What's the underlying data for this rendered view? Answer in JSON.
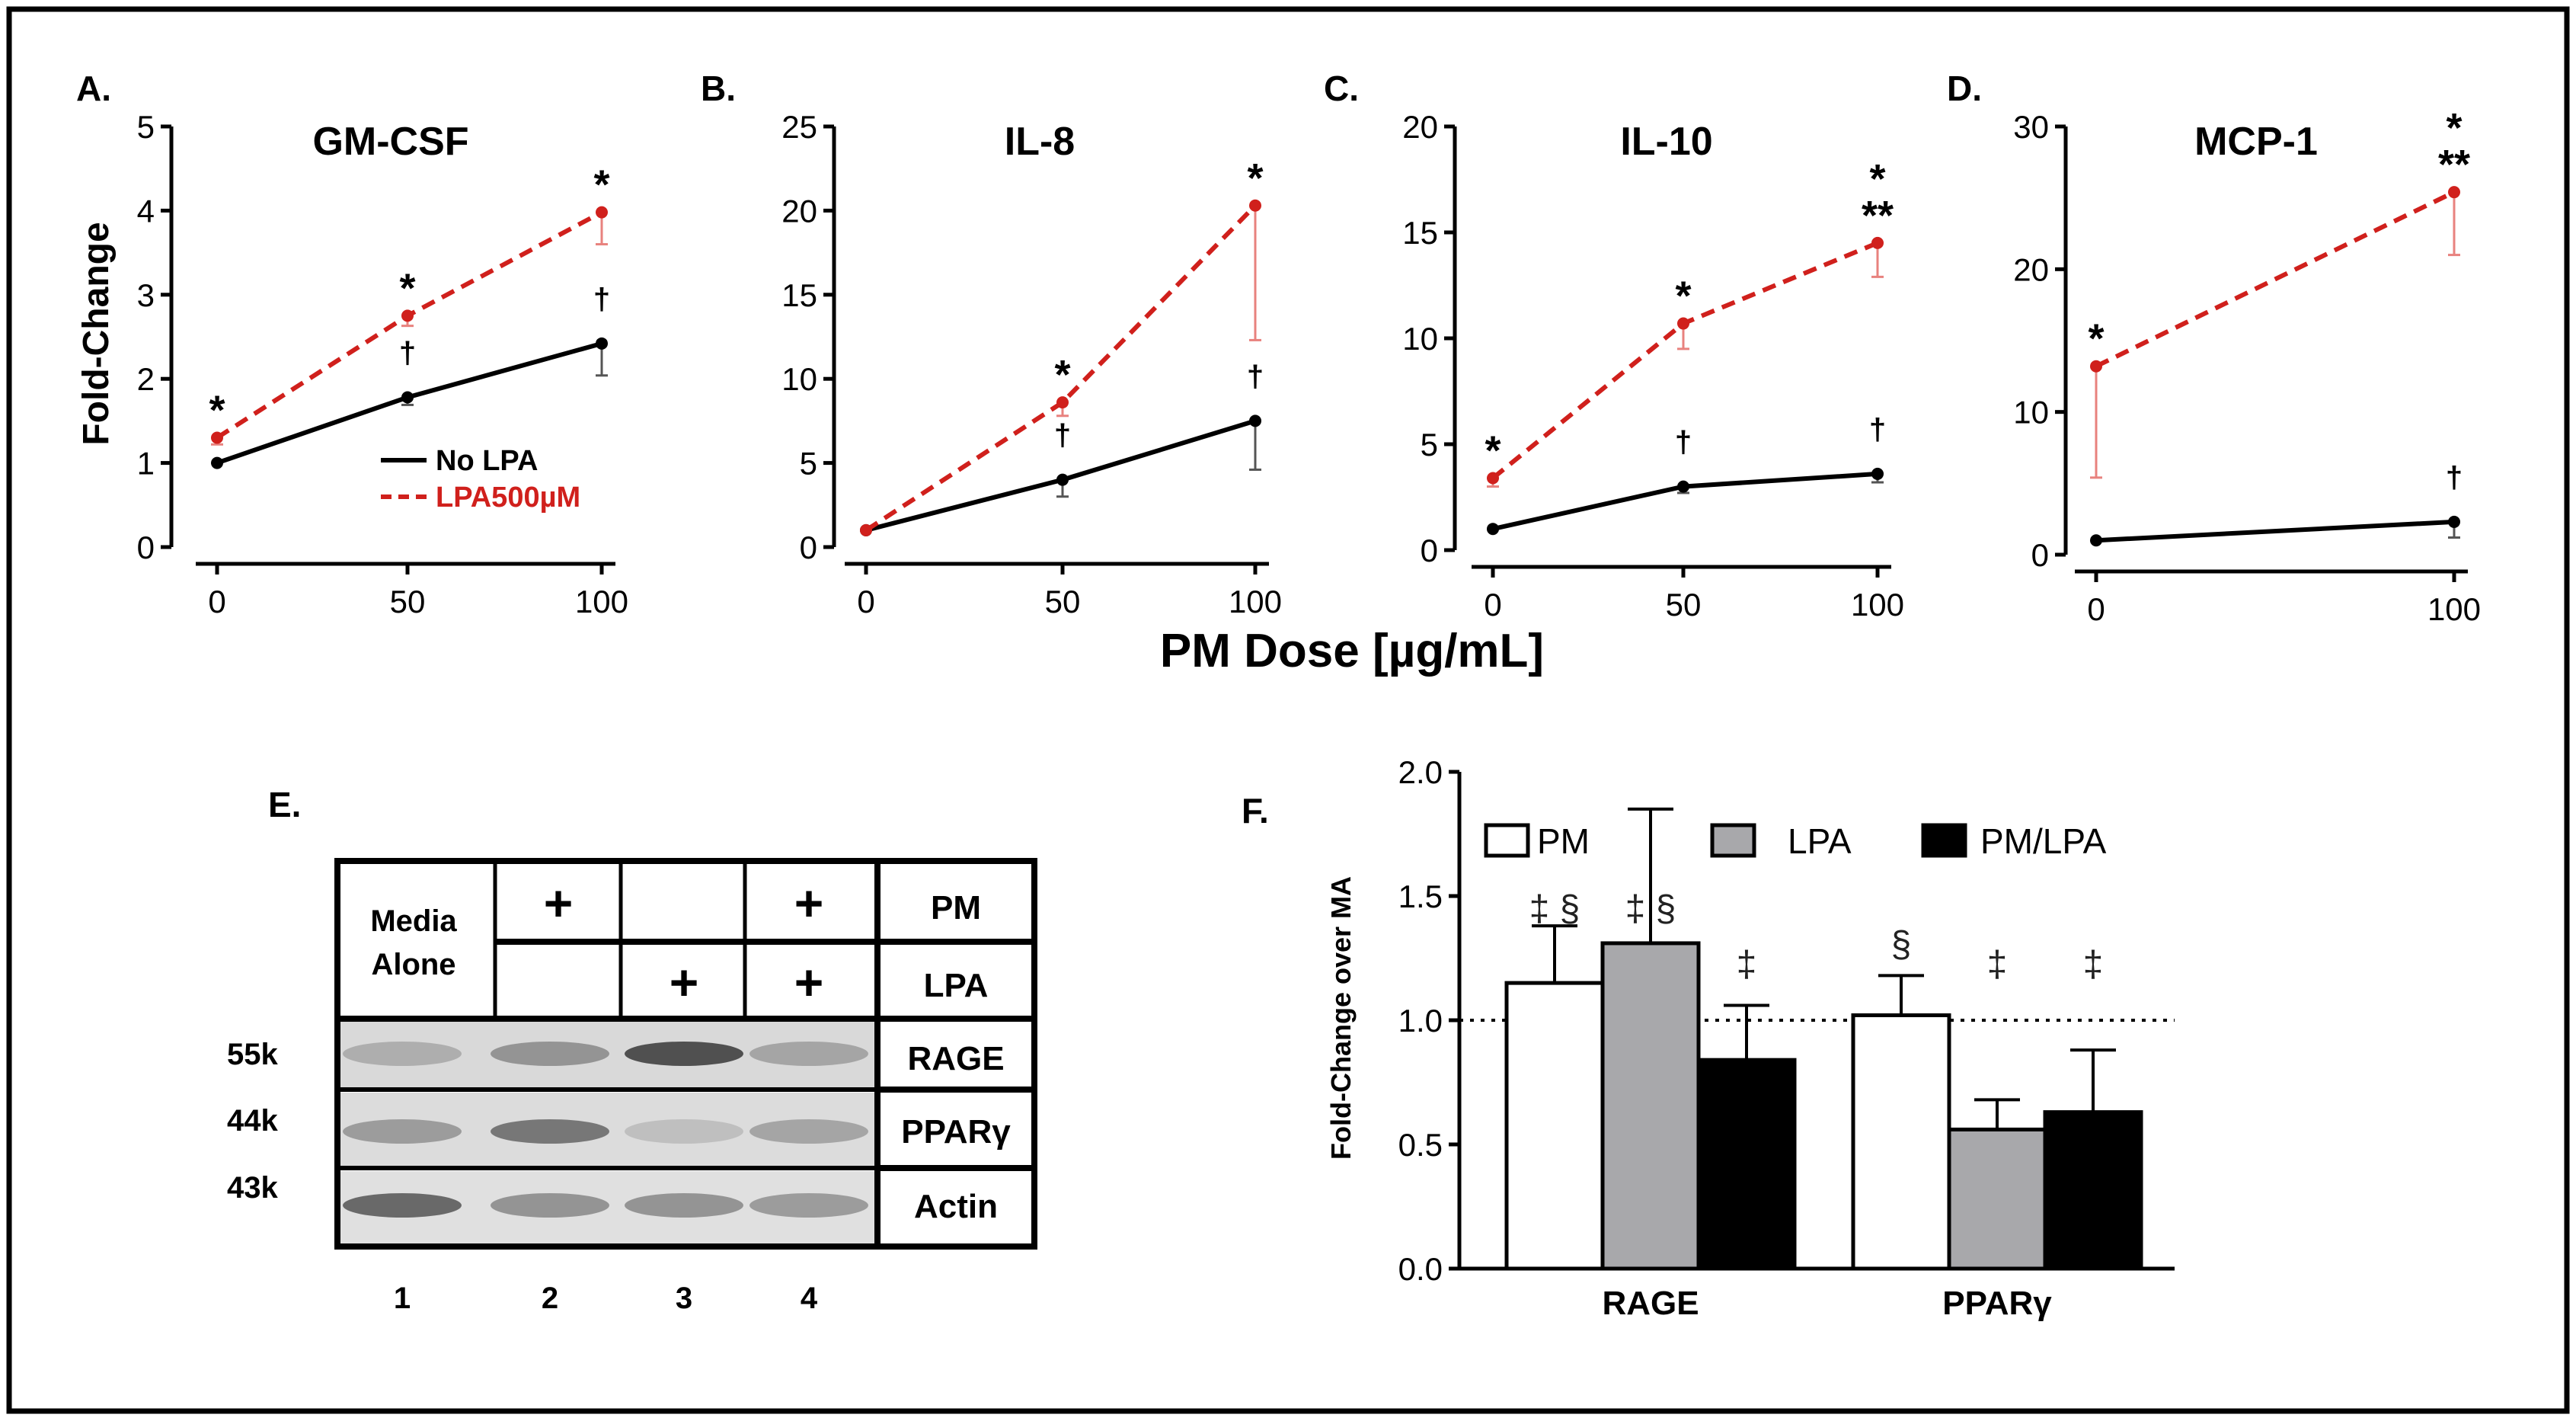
{
  "shared_xlabel": "PM Dose [µg/mL]",
  "colors": {
    "no_lpa": "#000000",
    "lpa": "#d0201c",
    "error_lpa": "#e8827e",
    "pm_bar": "#ffffff",
    "lpa_bar": "#a8a8ab",
    "pmlpa_bar": "#000000"
  },
  "chart_data": [
    {
      "panel": "A.",
      "title": "GM-CSF",
      "type": "line",
      "ylabel": "Fold-Change",
      "ylim": [
        0,
        5
      ],
      "yticks": [
        0,
        1,
        2,
        3,
        4,
        5
      ],
      "x": [
        0,
        50,
        100
      ],
      "xticks": [
        "0",
        "50",
        "100"
      ],
      "legend": [
        "No LPA",
        "LPA500µM"
      ],
      "series": [
        {
          "name": "No LPA",
          "values": [
            1.0,
            1.78,
            2.42
          ],
          "err": [
            0,
            0.09,
            0.38
          ],
          "marks": [
            "",
            "†",
            "†"
          ]
        },
        {
          "name": "LPA500µM",
          "values": [
            1.3,
            2.75,
            3.98
          ],
          "err": [
            0.08,
            0.12,
            0.38
          ],
          "marks": [
            "*",
            "*",
            "*"
          ]
        }
      ]
    },
    {
      "panel": "B.",
      "title": "IL-8",
      "type": "line",
      "ylim": [
        0,
        25
      ],
      "yticks": [
        0,
        5,
        10,
        15,
        20,
        25
      ],
      "x": [
        0,
        50,
        100
      ],
      "xticks": [
        "0",
        "50",
        "100"
      ],
      "series": [
        {
          "name": "No LPA",
          "values": [
            1.0,
            4.0,
            7.5
          ],
          "err": [
            0,
            1.0,
            2.9
          ],
          "marks": [
            "",
            "†",
            "†"
          ]
        },
        {
          "name": "LPA500µM",
          "values": [
            1.0,
            8.6,
            20.3
          ],
          "err": [
            0,
            0.8,
            8.0
          ],
          "marks": [
            "",
            "*",
            "*"
          ]
        }
      ]
    },
    {
      "panel": "C.",
      "title": "IL-10",
      "type": "line",
      "ylim": [
        0,
        20
      ],
      "yticks": [
        0,
        5,
        10,
        15,
        20
      ],
      "x": [
        0,
        50,
        100
      ],
      "xticks": [
        "0",
        "50",
        "100"
      ],
      "series": [
        {
          "name": "No LPA",
          "values": [
            1.0,
            3.0,
            3.6
          ],
          "err": [
            0,
            0.3,
            0.4
          ],
          "marks": [
            "",
            "†",
            "†"
          ]
        },
        {
          "name": "LPA500µM",
          "values": [
            3.4,
            10.7,
            14.5
          ],
          "err": [
            0.4,
            1.2,
            1.6
          ],
          "marks": [
            "*",
            "*",
            "*\n**"
          ]
        }
      ]
    },
    {
      "panel": "D.",
      "title": "MCP-1",
      "type": "line",
      "ylim": [
        0,
        30
      ],
      "yticks": [
        0,
        10,
        20,
        30
      ],
      "x": [
        0,
        100
      ],
      "xticks": [
        "0",
        "100"
      ],
      "series": [
        {
          "name": "No LPA",
          "values": [
            1.0,
            2.3
          ],
          "err": [
            0,
            1.1
          ],
          "marks": [
            "",
            "†"
          ]
        },
        {
          "name": "LPA500µM",
          "values": [
            13.2,
            25.4
          ],
          "err": [
            7.8,
            4.4
          ],
          "marks": [
            "*",
            "*\n**"
          ]
        }
      ]
    },
    {
      "panel": "F.",
      "type": "bar",
      "ylabel": "Fold-Change  over MA",
      "ylim": [
        0,
        2.0
      ],
      "yticks": [
        "0.0",
        "0.5",
        "1.0",
        "1.5",
        "2.0"
      ],
      "categories": [
        "RAGE",
        "PPARγ"
      ],
      "reference_line": 1.0,
      "legend": [
        "PM",
        "LPA",
        "PM/LPA"
      ],
      "series": [
        {
          "name": "PM",
          "values": [
            1.15,
            1.02
          ],
          "err": [
            0.23,
            0.16
          ],
          "marks": [
            "‡ §",
            "§"
          ]
        },
        {
          "name": "LPA",
          "values": [
            1.31,
            0.56
          ],
          "err": [
            0.54,
            0.12
          ],
          "marks": [
            "‡ §",
            "‡"
          ]
        },
        {
          "name": "PM/LPA",
          "values": [
            0.84,
            0.63
          ],
          "err": [
            0.22,
            0.25
          ],
          "marks": [
            "‡",
            "‡"
          ]
        }
      ]
    }
  ],
  "blot": {
    "panel": "E.",
    "media_alone": [
      "Media",
      "Alone"
    ],
    "plus": "+",
    "row_labels": [
      "PM",
      "LPA",
      "RAGE",
      "PPARγ",
      "Actin"
    ],
    "markers": [
      "55k",
      "44k",
      "43k"
    ],
    "lanes": [
      "1",
      "2",
      "3",
      "4"
    ],
    "pm": [
      false,
      true,
      false,
      true
    ],
    "lpa": [
      false,
      false,
      true,
      true
    ],
    "intensity": {
      "RAGE": [
        0.3,
        0.45,
        0.85,
        0.35
      ],
      "PPARγ": [
        0.4,
        0.62,
        0.2,
        0.35
      ],
      "Actin": [
        0.7,
        0.45,
        0.45,
        0.4
      ]
    }
  }
}
